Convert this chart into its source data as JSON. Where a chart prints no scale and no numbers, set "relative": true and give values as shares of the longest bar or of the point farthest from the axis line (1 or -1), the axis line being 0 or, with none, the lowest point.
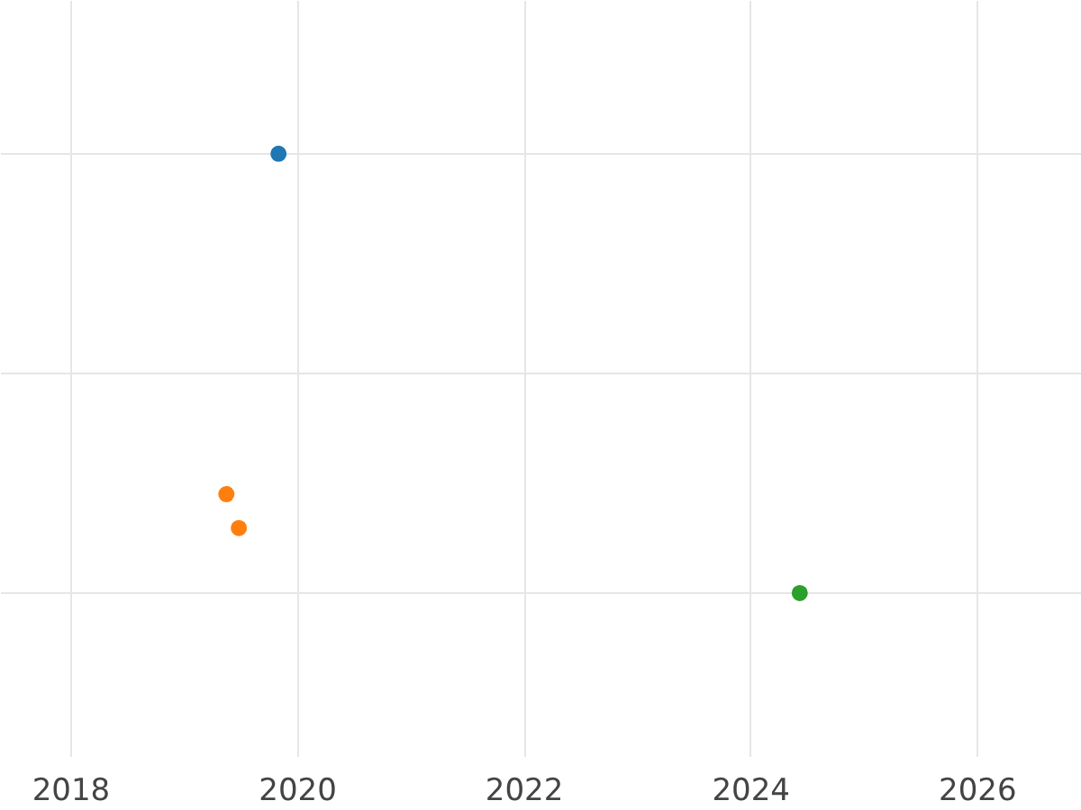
{
  "chart_data": {
    "type": "scatter",
    "relative": true,
    "grid": true,
    "marker": "circle",
    "xlim": [
      2017.38,
      2026.92
    ],
    "xticks": [
      2018,
      2020,
      2022,
      2024,
      2026
    ],
    "tick_labels": "x",
    "series": [
      {
        "color": "#1f77b4",
        "x": [
          2019.83
        ],
        "values": [
          1
        ]
      },
      {
        "color": "#ff7f0e",
        "x": [
          2019.37,
          2019.48
        ],
        "values": [
          0.225,
          0.148
        ]
      },
      {
        "color": "#2ca02c",
        "x": [
          2024.43
        ],
        "values": [
          0
        ]
      }
    ]
  }
}
